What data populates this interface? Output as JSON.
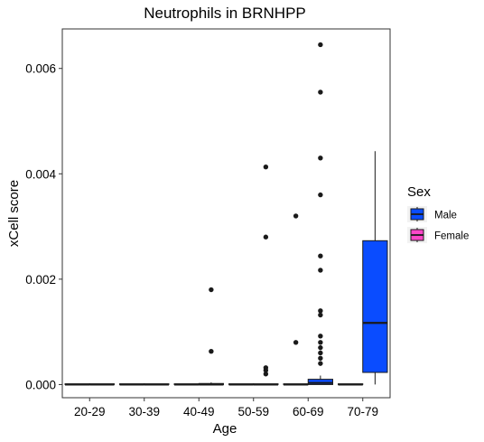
{
  "chart_data": {
    "type": "boxplot",
    "title": "Neutrophils in BRNHPP",
    "xlabel": "Age",
    "ylabel": "xCell score",
    "categories": [
      "20-29",
      "30-39",
      "40-49",
      "50-59",
      "60-69",
      "70-79"
    ],
    "ylim": [
      -0.00025,
      0.00675
    ],
    "yticks": [
      0.0,
      0.002,
      0.004,
      0.006
    ],
    "ytick_labels": [
      "0.000",
      "0.002",
      "0.004",
      "0.006"
    ],
    "grid": false,
    "legend": {
      "title": "Sex",
      "position": "right",
      "entries": [
        {
          "label": "Male",
          "color": "#0a4cff"
        },
        {
          "label": "Female",
          "color": "#ff47c8"
        }
      ]
    },
    "series": [
      {
        "name": "Female",
        "color": "#ff47c8",
        "boxes": [
          {
            "category": "20-29",
            "q1": 0,
            "median": 0,
            "q3": 0,
            "whisker_low": 0,
            "whisker_high": 0,
            "outliers": []
          },
          {
            "category": "30-39",
            "q1": 0,
            "median": 0,
            "q3": 0,
            "whisker_low": 0,
            "whisker_high": 0,
            "outliers": []
          },
          {
            "category": "40-49",
            "q1": 0,
            "median": 0,
            "q3": 0,
            "whisker_low": 0,
            "whisker_high": 0,
            "outliers": []
          },
          {
            "category": "50-59",
            "q1": 0,
            "median": 0,
            "q3": 0,
            "whisker_low": 0,
            "whisker_high": 0,
            "outliers": []
          },
          {
            "category": "60-69",
            "q1": 0,
            "median": 0,
            "q3": 0,
            "whisker_low": 0,
            "whisker_high": 0,
            "outliers": [
              0.0008,
              0.0032
            ]
          },
          {
            "category": "70-79",
            "q1": 0,
            "median": 0,
            "q3": 0,
            "whisker_low": 0,
            "whisker_high": 0,
            "outliers": []
          }
        ]
      },
      {
        "name": "Male",
        "color": "#0a4cff",
        "boxes": [
          {
            "category": "20-29",
            "q1": 0,
            "median": 0,
            "q3": 0,
            "whisker_low": 0,
            "whisker_high": 0,
            "outliers": []
          },
          {
            "category": "30-39",
            "q1": 0,
            "median": 0,
            "q3": 0,
            "whisker_low": 0,
            "whisker_high": 0,
            "outliers": []
          },
          {
            "category": "40-49",
            "q1": 0,
            "median": 0,
            "q3": 2e-05,
            "whisker_low": 0,
            "whisker_high": 4e-05,
            "outliers": [
              0.00063,
              0.0018
            ]
          },
          {
            "category": "50-59",
            "q1": 0,
            "median": 0,
            "q3": 0,
            "whisker_low": 0,
            "whisker_high": 0,
            "outliers": [
              0.0002,
              0.00027,
              0.00032,
              0.0028,
              0.00413
            ]
          },
          {
            "category": "60-69",
            "q1": 0,
            "median": 3e-05,
            "q3": 0.0001,
            "whisker_low": 0,
            "whisker_high": 0.00017,
            "outliers": [
              0.0004,
              0.0005,
              0.0006,
              0.0007,
              0.0008,
              0.00092,
              0.00132,
              0.0014,
              0.00217,
              0.00244,
              0.0036,
              0.0043,
              0.00555,
              0.00645
            ]
          },
          {
            "category": "70-79",
            "q1": 0.00023,
            "median": 0.00117,
            "q3": 0.00273,
            "whisker_low": 0,
            "whisker_high": 0.00443,
            "outliers": []
          }
        ]
      }
    ]
  }
}
